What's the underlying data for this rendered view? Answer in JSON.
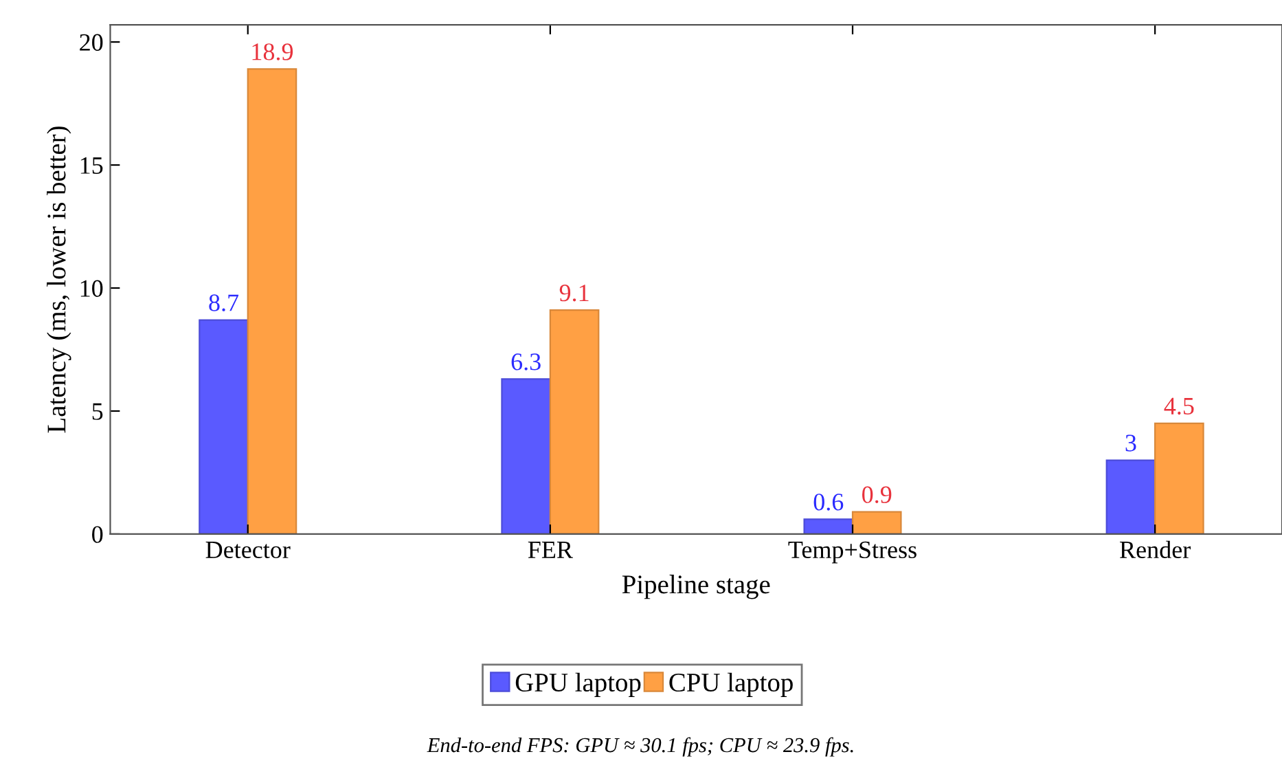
{
  "chart_data": {
    "type": "bar",
    "xlabel": "Pipeline stage",
    "ylabel": "Latency (ms, lower is better)",
    "categories": [
      "Detector",
      "FER",
      "Temp+Stress",
      "Render"
    ],
    "series": [
      {
        "name": "GPU laptop",
        "color": "#5a5aff",
        "values": [
          8.7,
          6.3,
          0.6,
          3
        ]
      },
      {
        "name": "CPU laptop",
        "color": "#ffa044",
        "values": [
          18.9,
          9.1,
          0.9,
          4.5
        ]
      }
    ],
    "ylim": [
      0,
      20.7
    ],
    "yticks": [
      0,
      5,
      10,
      15,
      20
    ],
    "data_labels": true,
    "legend": "bottom",
    "grid": false,
    "annotations": [
      "End-to-end FPS: GPU ≈ 30.1 fps; CPU ≈ 23.9 fps."
    ]
  }
}
